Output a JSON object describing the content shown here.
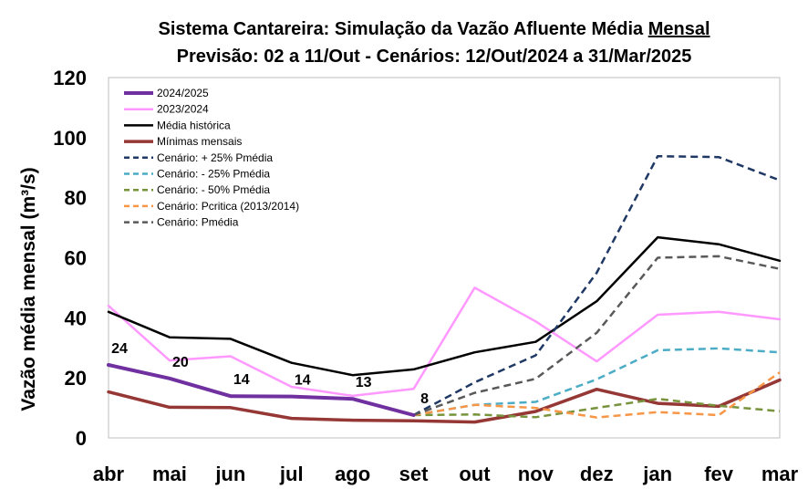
{
  "chart_data": {
    "type": "line",
    "title_line1_prefix": "Sistema Cantareira: Simulação da Vazão Afluente Média ",
    "title_line1_underlined": "Mensal",
    "title_line2": "Previsão: 02 a 11/Out - Cenários: 12/Out/2024 a 31/Mar/2025",
    "ylabel": "Vazão média mensal (m³/s)",
    "ylim": [
      0,
      120
    ],
    "yticks": [
      0,
      20,
      40,
      60,
      80,
      100,
      120
    ],
    "categories": [
      "abr",
      "mai",
      "jun",
      "jul",
      "ago",
      "set",
      "out",
      "nov",
      "dez",
      "jan",
      "fev",
      "mar"
    ],
    "legend_position": "top-left",
    "series": [
      {
        "name": "2024/2025",
        "color": "#7030a0",
        "dash": "solid",
        "width": 4,
        "values": [
          24.3,
          19.8,
          13.9,
          13.8,
          13.0,
          7.6,
          null,
          null,
          null,
          null,
          null,
          null
        ],
        "labels": [
          "24",
          "20",
          "14",
          "14",
          "13",
          "8",
          null,
          null,
          null,
          null,
          null,
          null
        ]
      },
      {
        "name": "2023/2024",
        "color": "#ff99ff",
        "dash": "solid",
        "width": 2.5,
        "values": [
          44,
          25.8,
          27.2,
          17.0,
          14.0,
          16.3,
          50.0,
          38.8,
          25.5,
          41.0,
          42.0,
          39.5
        ]
      },
      {
        "name": "Média histórica",
        "color": "#000000",
        "dash": "solid",
        "width": 2.5,
        "values": [
          42,
          33.5,
          33.0,
          25.0,
          20.9,
          22.8,
          28.5,
          32.0,
          45.5,
          66.8,
          64.5,
          59.0
        ]
      },
      {
        "name": "Mínimas mensais",
        "color": "#953735",
        "dash": "solid",
        "width": 3.5,
        "values": [
          15.3,
          10.2,
          10.1,
          6.5,
          5.9,
          5.7,
          5.3,
          8.8,
          16.2,
          11.5,
          10.5,
          19.3
        ]
      },
      {
        "name": "Cenário: + 25% Pmédia",
        "color": "#1f3864",
        "dash": "dashed",
        "width": 2.5,
        "values": [
          null,
          null,
          null,
          null,
          null,
          7.6,
          18.5,
          27.5,
          55.0,
          93.8,
          93.5,
          85.8
        ]
      },
      {
        "name": "Cenário: - 25% Pmédia",
        "color": "#4bacc6",
        "dash": "dashed",
        "width": 2.5,
        "values": [
          null,
          null,
          null,
          null,
          null,
          7.6,
          11.0,
          12.0,
          19.5,
          29.2,
          29.8,
          28.5
        ]
      },
      {
        "name": "Cenário: - 50% Pmédia",
        "color": "#77933c",
        "dash": "dashed",
        "width": 2.5,
        "values": [
          null,
          null,
          null,
          null,
          null,
          7.6,
          7.8,
          6.9,
          10.0,
          13.0,
          10.7,
          8.9
        ]
      },
      {
        "name": "Cenário: Pcritica (2013/2014)",
        "color": "#f79646",
        "dash": "dashed",
        "width": 2.5,
        "values": [
          null,
          null,
          null,
          null,
          null,
          7.6,
          11.0,
          10.0,
          6.8,
          8.6,
          7.6,
          21.8
        ]
      },
      {
        "name": "Cenário: Pmédia",
        "color": "#595959",
        "dash": "dashed",
        "width": 2.5,
        "values": [
          null,
          null,
          null,
          null,
          null,
          7.6,
          15.0,
          19.7,
          35.0,
          60.0,
          60.5,
          56.3
        ]
      }
    ]
  }
}
